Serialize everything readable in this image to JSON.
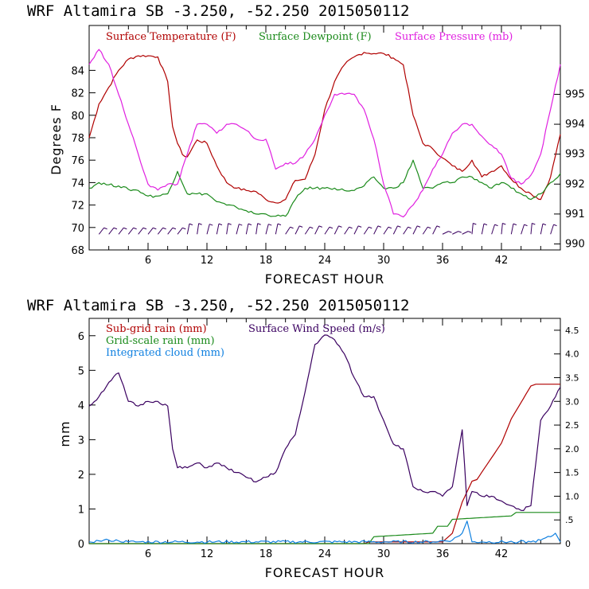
{
  "chart_data": [
    {
      "type": "line",
      "title": "WRF  Altamira  SB  -3.250, -52.250  2015050112",
      "xlabel": "FORECAST HOUR",
      "ylabel": "Degrees F",
      "y2label": "",
      "xlim": [
        0,
        48
      ],
      "ylim": [
        68,
        88
      ],
      "y2lim": [
        989.8,
        997.3
      ],
      "x_ticks": [
        "6",
        "12",
        "18",
        "24",
        "30",
        "36",
        "42"
      ],
      "y_ticks": [
        "68",
        "70",
        "72",
        "74",
        "76",
        "78",
        "80",
        "82",
        "84"
      ],
      "y2_ticks": [
        "990",
        "991",
        "992",
        "993",
        "994",
        "995"
      ],
      "wind_barbs": "wind barbs along y=69.5 (hourly)",
      "series": [
        {
          "name": "Surface Temperature (F)",
          "color": "#b00000",
          "axis": "left",
          "x": [
            0,
            1,
            2,
            3,
            4,
            5,
            6,
            7,
            8,
            8.5,
            9,
            9.5,
            10,
            11,
            12,
            13,
            14,
            15,
            16,
            17,
            18,
            19,
            20,
            21,
            22,
            23,
            24,
            25,
            26,
            27,
            28,
            29,
            30,
            31,
            32,
            33,
            34,
            35,
            36,
            37,
            38,
            39,
            40,
            41,
            42,
            43,
            44,
            45,
            46,
            47,
            48
          ],
          "values": [
            78,
            81,
            82.5,
            84,
            85,
            85.3,
            85.3,
            85.2,
            83,
            79,
            77.5,
            76.5,
            76.3,
            77.8,
            77.5,
            75.5,
            74,
            73.5,
            73.3,
            73.2,
            72.5,
            72.2,
            72.5,
            74.2,
            74.3,
            76.5,
            80.5,
            83,
            84.5,
            85.2,
            85.6,
            85.5,
            85.5,
            85.1,
            84.5,
            80,
            77.5,
            77,
            76.2,
            75.5,
            75,
            76,
            74.5,
            75,
            75.5,
            74.3,
            73.5,
            73,
            72.5,
            74.5,
            78.3
          ]
        },
        {
          "name": "Surface Dewpoint (F)",
          "color": "#1a8a1a",
          "axis": "left",
          "x": [
            0,
            1,
            2,
            3,
            4,
            5,
            6,
            7,
            8,
            9,
            10,
            11,
            12,
            13,
            14,
            15,
            16,
            17,
            18,
            19,
            20,
            21,
            22,
            23,
            24,
            25,
            26,
            27,
            28,
            29,
            30,
            31,
            32,
            33,
            34,
            35,
            36,
            37,
            38,
            39,
            40,
            41,
            42,
            43,
            44,
            45,
            46,
            47,
            48
          ],
          "values": [
            73.5,
            74,
            73.8,
            73.7,
            73.4,
            73.3,
            72.8,
            72.8,
            73,
            75,
            73,
            73,
            73,
            72.3,
            72,
            71.8,
            71.5,
            71.2,
            71.2,
            71,
            71,
            72.5,
            73.5,
            73.5,
            73.5,
            73.5,
            73.3,
            73.3,
            73.7,
            74.5,
            73.5,
            73.5,
            74,
            76,
            73.5,
            73.5,
            74,
            74,
            74.5,
            74.5,
            74,
            73.5,
            74,
            73.5,
            73,
            72.5,
            73,
            74,
            74.8
          ]
        },
        {
          "name": "Surface Pressure (mb)",
          "color": "#e020e0",
          "axis": "right",
          "x": [
            0,
            1,
            2,
            3,
            4,
            5,
            6,
            7,
            8,
            9,
            10,
            11,
            12,
            13,
            14,
            15,
            16,
            17,
            18,
            19,
            20,
            21,
            22,
            23,
            24,
            25,
            26,
            27,
            28,
            29,
            30,
            31,
            32,
            33,
            34,
            35,
            36,
            37,
            38,
            39,
            40,
            41,
            42,
            43,
            44,
            45,
            46,
            47,
            48
          ],
          "values": [
            996,
            996.5,
            996,
            995,
            994,
            993,
            992,
            991.8,
            992,
            992,
            993,
            994,
            994,
            993.7,
            994,
            994,
            993.8,
            993.5,
            993.5,
            992.5,
            992.7,
            992.7,
            993,
            993.5,
            994.3,
            995,
            995,
            995,
            994.5,
            993.5,
            992,
            991,
            990.9,
            991.3,
            991.8,
            992.5,
            993,
            993.7,
            994,
            994,
            993.6,
            993.3,
            993,
            992.2,
            992,
            992.3,
            993,
            994.5,
            996
          ]
        }
      ]
    },
    {
      "type": "line",
      "title": "WRF  Altamira  SB  -3.250, -52.250  2015050112",
      "xlabel": "FORECAST HOUR",
      "ylabel": "mm",
      "xlim": [
        0,
        48
      ],
      "ylim": [
        0,
        6.5
      ],
      "y2lim": [
        0,
        4.75
      ],
      "x_ticks": [
        "6",
        "12",
        "18",
        "24",
        "30",
        "36",
        "42"
      ],
      "y_ticks": [
        "0",
        "1",
        "2",
        "3",
        "4",
        "5",
        "6"
      ],
      "y2_ticks": [
        "0",
        ".5",
        "1.0",
        "1.5",
        "2.0",
        "2.5",
        "3.0",
        "3.5",
        "4.0",
        "4.5"
      ],
      "series": [
        {
          "name": "Sub-grid rain (mm)",
          "color": "#b00000",
          "axis": "left",
          "x": [
            0,
            28,
            28.5,
            36,
            37,
            38,
            39,
            39.5,
            42,
            43,
            45,
            45.5,
            48
          ],
          "values": [
            0,
            0,
            0.05,
            0.05,
            0.3,
            1.2,
            1.8,
            1.85,
            2.9,
            3.6,
            4.55,
            4.6,
            4.6
          ]
        },
        {
          "name": "Surface Wind Speed (m/s)",
          "color": "#3a0060",
          "axis": "right",
          "x": [
            0,
            1,
            2,
            3,
            4,
            5,
            6,
            7,
            8,
            8.5,
            9,
            10,
            11,
            12,
            13,
            14,
            15,
            16,
            17,
            18,
            19,
            20,
            21,
            22,
            23,
            24,
            25,
            26,
            27,
            28,
            29,
            30,
            31,
            32,
            33,
            34,
            35,
            36,
            37,
            38,
            38.5,
            39,
            40,
            41,
            42,
            43,
            44,
            45,
            46,
            47,
            48
          ],
          "values": [
            2.9,
            3.1,
            3.4,
            3.6,
            3.0,
            2.9,
            3.0,
            3.0,
            2.9,
            2.0,
            1.6,
            1.6,
            1.7,
            1.6,
            1.7,
            1.6,
            1.5,
            1.4,
            1.3,
            1.4,
            1.5,
            2.0,
            2.3,
            3.2,
            4.2,
            4.4,
            4.3,
            4.0,
            3.5,
            3.1,
            3.1,
            2.6,
            2.1,
            2.0,
            1.2,
            1.1,
            1.1,
            1.0,
            1.2,
            2.4,
            0.8,
            1.1,
            1.0,
            1.0,
            0.9,
            0.8,
            0.7,
            0.8,
            2.6,
            2.9,
            3.3
          ]
        },
        {
          "name": "Grid-scale rain (mm)",
          "color": "#1a8a1a",
          "axis": "left",
          "x": [
            0,
            28.5,
            29,
            35,
            35.5,
            36.5,
            37,
            43,
            43.5,
            48
          ],
          "values": [
            0,
            0,
            0.2,
            0.3,
            0.5,
            0.5,
            0.7,
            0.8,
            0.9,
            0.9
          ]
        },
        {
          "name": "Integrated cloud (mm)",
          "color": "#1080e0",
          "axis": "left",
          "x": [
            0,
            1,
            2,
            3,
            4,
            5,
            30,
            35,
            37,
            38,
            38.5,
            39,
            40,
            45,
            46,
            47,
            47.5,
            48
          ],
          "values": [
            0.05,
            0.08,
            0.1,
            0.08,
            0.05,
            0.05,
            0.05,
            0.05,
            0.1,
            0.3,
            0.65,
            0.05,
            0.05,
            0.05,
            0.1,
            0.2,
            0.3,
            0.05
          ]
        }
      ]
    }
  ]
}
